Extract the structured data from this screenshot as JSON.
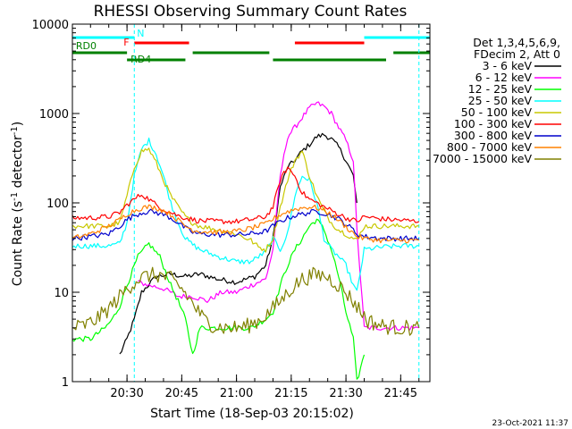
{
  "chart_data": {
    "type": "line",
    "title": "RHESSI Observing Summary Count Rates",
    "xlabel": "Start Time (18-Sep-03 20:15:02)",
    "ylabel_main": "Count Rate (s",
    "ylabel_sup1": "-1",
    "ylabel_mid": " detector",
    "ylabel_sup2": "-1",
    "ylabel_end": ")",
    "y_scale": "log",
    "ylim": [
      1,
      10000
    ],
    "xlim": [
      "20:15:02",
      "21:53:00"
    ],
    "x_ticks": [
      "20:30",
      "20:45",
      "21:00",
      "21:15",
      "21:30",
      "21:45"
    ],
    "y_ticks": [
      {
        "value": 1,
        "label": "1"
      },
      {
        "value": 10,
        "label": "10"
      },
      {
        "value": 100,
        "label": "100"
      },
      {
        "value": 1000,
        "label": "1000"
      },
      {
        "value": 10000,
        "label": "10000"
      }
    ],
    "legend_header": [
      "Det 1,3,4,5,6,9,",
      "FDecim 2, Att 0"
    ],
    "timestamp": "23-Oct-2021 11:37",
    "flag_bands": [
      {
        "label": "N",
        "color": "#00ffff",
        "segments": [
          [
            "20:15",
            "20:32"
          ],
          [
            "21:35",
            "21:53"
          ]
        ]
      },
      {
        "label": "F",
        "color": "#ff0000",
        "segments": [
          [
            "20:32",
            "20:47"
          ],
          [
            "21:16",
            "21:35"
          ]
        ]
      },
      {
        "label": "RD0",
        "color": "#008000",
        "segments": [
          [
            "20:15",
            "20:30"
          ],
          [
            "20:48",
            "21:09"
          ],
          [
            "21:43",
            "21:53"
          ]
        ]
      },
      {
        "label": "RD4",
        "color": "#008000",
        "segments": [
          [
            "20:30",
            "20:46"
          ],
          [
            "21:10",
            "21:41"
          ]
        ]
      }
    ],
    "vlines": [
      "20:32",
      "21:50"
    ],
    "series": [
      {
        "name": "3 - 6 keV",
        "color": "#000000",
        "x": [
          "20:28",
          "20:30",
          "20:32",
          "20:34",
          "20:38",
          "20:42",
          "20:46",
          "20:50",
          "20:55",
          "21:00",
          "21:05",
          "21:08",
          "21:10",
          "21:12",
          "21:14",
          "21:16",
          "21:18",
          "21:20",
          "21:22",
          "21:24",
          "21:26",
          "21:28",
          "21:30",
          "21:32",
          "21:33"
        ],
        "y": [
          2,
          3,
          5,
          10,
          15,
          16,
          15,
          16,
          14,
          13,
          15,
          20,
          40,
          150,
          250,
          300,
          380,
          450,
          550,
          580,
          520,
          420,
          300,
          200,
          100
        ]
      },
      {
        "name": "6 - 12 keV",
        "color": "#ff00ff",
        "x": [
          "20:33",
          "20:36",
          "20:40",
          "20:44",
          "20:48",
          "20:52",
          "20:56",
          "21:00",
          "21:04",
          "21:08",
          "21:10",
          "21:12",
          "21:14",
          "21:16",
          "21:18",
          "21:20",
          "21:22",
          "21:24",
          "21:26",
          "21:28",
          "21:30",
          "21:32",
          "21:33",
          "21:35",
          "21:40",
          "21:45",
          "21:50"
        ],
        "y": [
          13,
          12,
          11,
          9,
          9,
          8,
          10,
          10,
          12,
          14,
          30,
          200,
          550,
          700,
          900,
          1150,
          1300,
          1200,
          1000,
          700,
          500,
          300,
          50,
          4,
          4,
          4,
          4
        ]
      },
      {
        "name": "12 - 25 keV",
        "color": "#00ff00",
        "x": [
          "20:15",
          "20:20",
          "20:24",
          "20:26",
          "20:28",
          "20:30",
          "20:33",
          "20:36",
          "20:39",
          "20:42",
          "20:44",
          "20:46",
          "20:48",
          "20:50",
          "20:52",
          "20:56",
          "21:00",
          "21:04",
          "21:08",
          "21:10",
          "21:12",
          "21:14",
          "21:16",
          "21:18",
          "21:20",
          "21:22",
          "21:24",
          "21:26",
          "21:28",
          "21:30",
          "21:32",
          "21:33",
          "21:35"
        ],
        "y": [
          3,
          3,
          4,
          5,
          7,
          12,
          25,
          35,
          25,
          12,
          8,
          5,
          2,
          4,
          4,
          4,
          4,
          4,
          5,
          6,
          12,
          20,
          30,
          40,
          55,
          65,
          50,
          30,
          15,
          6,
          3,
          1,
          2
        ]
      },
      {
        "name": "25 - 50 keV",
        "color": "#00ffff",
        "x": [
          "20:15",
          "20:20",
          "20:25",
          "20:28",
          "20:30",
          "20:32",
          "20:34",
          "20:36",
          "20:38",
          "20:40",
          "20:42",
          "20:44",
          "20:46",
          "20:48",
          "20:50",
          "20:55",
          "21:00",
          "21:04",
          "21:06",
          "21:08",
          "21:10",
          "21:12",
          "21:14",
          "21:16",
          "21:18",
          "21:20",
          "21:22",
          "21:24",
          "21:26",
          "21:28",
          "21:30",
          "21:32",
          "21:33",
          "21:35",
          "21:40",
          "21:45",
          "21:50"
        ],
        "y": [
          33,
          33,
          33,
          35,
          60,
          200,
          400,
          500,
          350,
          200,
          100,
          60,
          40,
          34,
          30,
          25,
          22,
          22,
          25,
          28,
          40,
          30,
          45,
          120,
          200,
          180,
          100,
          40,
          30,
          25,
          20,
          12,
          10,
          30,
          32,
          33,
          33
        ]
      },
      {
        "name": "50 - 100 keV",
        "color": "#c8c800",
        "x": [
          "20:15",
          "20:20",
          "20:25",
          "20:28",
          "20:30",
          "20:32",
          "20:34",
          "20:36",
          "20:38",
          "20:40",
          "20:42",
          "20:44",
          "20:46",
          "20:48",
          "20:50",
          "20:55",
          "21:00",
          "21:04",
          "21:06",
          "21:08",
          "21:10",
          "21:12",
          "21:14",
          "21:16",
          "21:18",
          "21:20",
          "21:22",
          "21:24",
          "21:26",
          "21:28",
          "21:30",
          "21:32",
          "21:33",
          "21:35",
          "21:40",
          "21:45",
          "21:50"
        ],
        "y": [
          55,
          55,
          55,
          60,
          120,
          250,
          380,
          400,
          280,
          180,
          120,
          90,
          70,
          60,
          55,
          50,
          45,
          38,
          32,
          30,
          40,
          90,
          180,
          300,
          380,
          200,
          120,
          80,
          60,
          50,
          45,
          40,
          38,
          55,
          55,
          55,
          55
        ]
      },
      {
        "name": "100 - 300 keV",
        "color": "#ff0000",
        "x": [
          "20:15",
          "20:20",
          "20:25",
          "20:28",
          "20:30",
          "20:32",
          "20:34",
          "20:36",
          "20:38",
          "20:40",
          "20:42",
          "20:44",
          "20:46",
          "20:48",
          "20:50",
          "20:55",
          "21:00",
          "21:04",
          "21:08",
          "21:10",
          "21:12",
          "21:14",
          "21:16",
          "21:18",
          "21:20",
          "21:22",
          "21:24",
          "21:26",
          "21:28",
          "21:30",
          "21:32",
          "21:33",
          "21:35",
          "21:40",
          "21:45",
          "21:50"
        ],
        "y": [
          68,
          68,
          70,
          78,
          95,
          110,
          125,
          110,
          95,
          85,
          78,
          72,
          68,
          65,
          63,
          62,
          62,
          65,
          70,
          90,
          180,
          250,
          200,
          130,
          110,
          100,
          90,
          82,
          75,
          68,
          64,
          62,
          70,
          66,
          64,
          62
        ]
      },
      {
        "name": "300 - 800 keV",
        "color": "#0000cc",
        "x": [
          "20:15",
          "20:20",
          "20:25",
          "20:28",
          "20:30",
          "20:32",
          "20:34",
          "20:36",
          "20:38",
          "20:40",
          "20:42",
          "20:44",
          "20:46",
          "20:48",
          "20:50",
          "20:55",
          "21:00",
          "21:04",
          "21:08",
          "21:10",
          "21:12",
          "21:14",
          "21:16",
          "21:18",
          "21:20",
          "21:22",
          "21:24",
          "21:26",
          "21:28",
          "21:30",
          "21:32",
          "21:33",
          "21:35",
          "21:40",
          "21:45",
          "21:50"
        ],
        "y": [
          40,
          42,
          45,
          55,
          65,
          72,
          78,
          80,
          78,
          74,
          68,
          60,
          52,
          47,
          45,
          44,
          44,
          45,
          48,
          55,
          62,
          68,
          72,
          75,
          78,
          80,
          77,
          72,
          66,
          58,
          50,
          45,
          42,
          40,
          40,
          40
        ]
      },
      {
        "name": "800 - 7000 keV",
        "color": "#ff8000",
        "x": [
          "20:15",
          "20:20",
          "20:25",
          "20:28",
          "20:30",
          "20:32",
          "20:34",
          "20:36",
          "20:38",
          "20:40",
          "20:42",
          "20:44",
          "20:46",
          "20:48",
          "20:50",
          "20:55",
          "21:00",
          "21:04",
          "21:08",
          "21:10",
          "21:12",
          "21:14",
          "21:16",
          "21:18",
          "21:20",
          "21:22",
          "21:24",
          "21:26",
          "21:28",
          "21:30",
          "21:32",
          "21:33",
          "21:35",
          "21:40",
          "21:45",
          "21:50"
        ],
        "y": [
          40,
          45,
          55,
          65,
          75,
          82,
          88,
          90,
          88,
          82,
          74,
          64,
          55,
          50,
          48,
          47,
          48,
          52,
          58,
          66,
          74,
          80,
          85,
          88,
          90,
          88,
          82,
          74,
          64,
          54,
          46,
          42,
          40,
          38,
          38,
          38
        ]
      },
      {
        "name": "7000 - 15000 keV",
        "color": "#808000",
        "x": [
          "20:15",
          "20:18",
          "20:21",
          "20:24",
          "20:27",
          "20:30",
          "20:33",
          "20:36",
          "20:39",
          "20:42",
          "20:45",
          "20:48",
          "20:51",
          "20:54",
          "20:57",
          "21:00",
          "21:03",
          "21:06",
          "21:09",
          "21:12",
          "21:15",
          "21:18",
          "21:21",
          "21:24",
          "21:27",
          "21:30",
          "21:33",
          "21:36",
          "21:40",
          "21:45",
          "21:50"
        ],
        "y": [
          4,
          4.2,
          4.8,
          6,
          8,
          11,
          14,
          15.5,
          15.5,
          14,
          11,
          7.5,
          5,
          4.2,
          4,
          4,
          4.2,
          4.8,
          6,
          8,
          11,
          14,
          15.5,
          15.5,
          13,
          10,
          7,
          4.8,
          4.2,
          4,
          4
        ]
      }
    ]
  }
}
